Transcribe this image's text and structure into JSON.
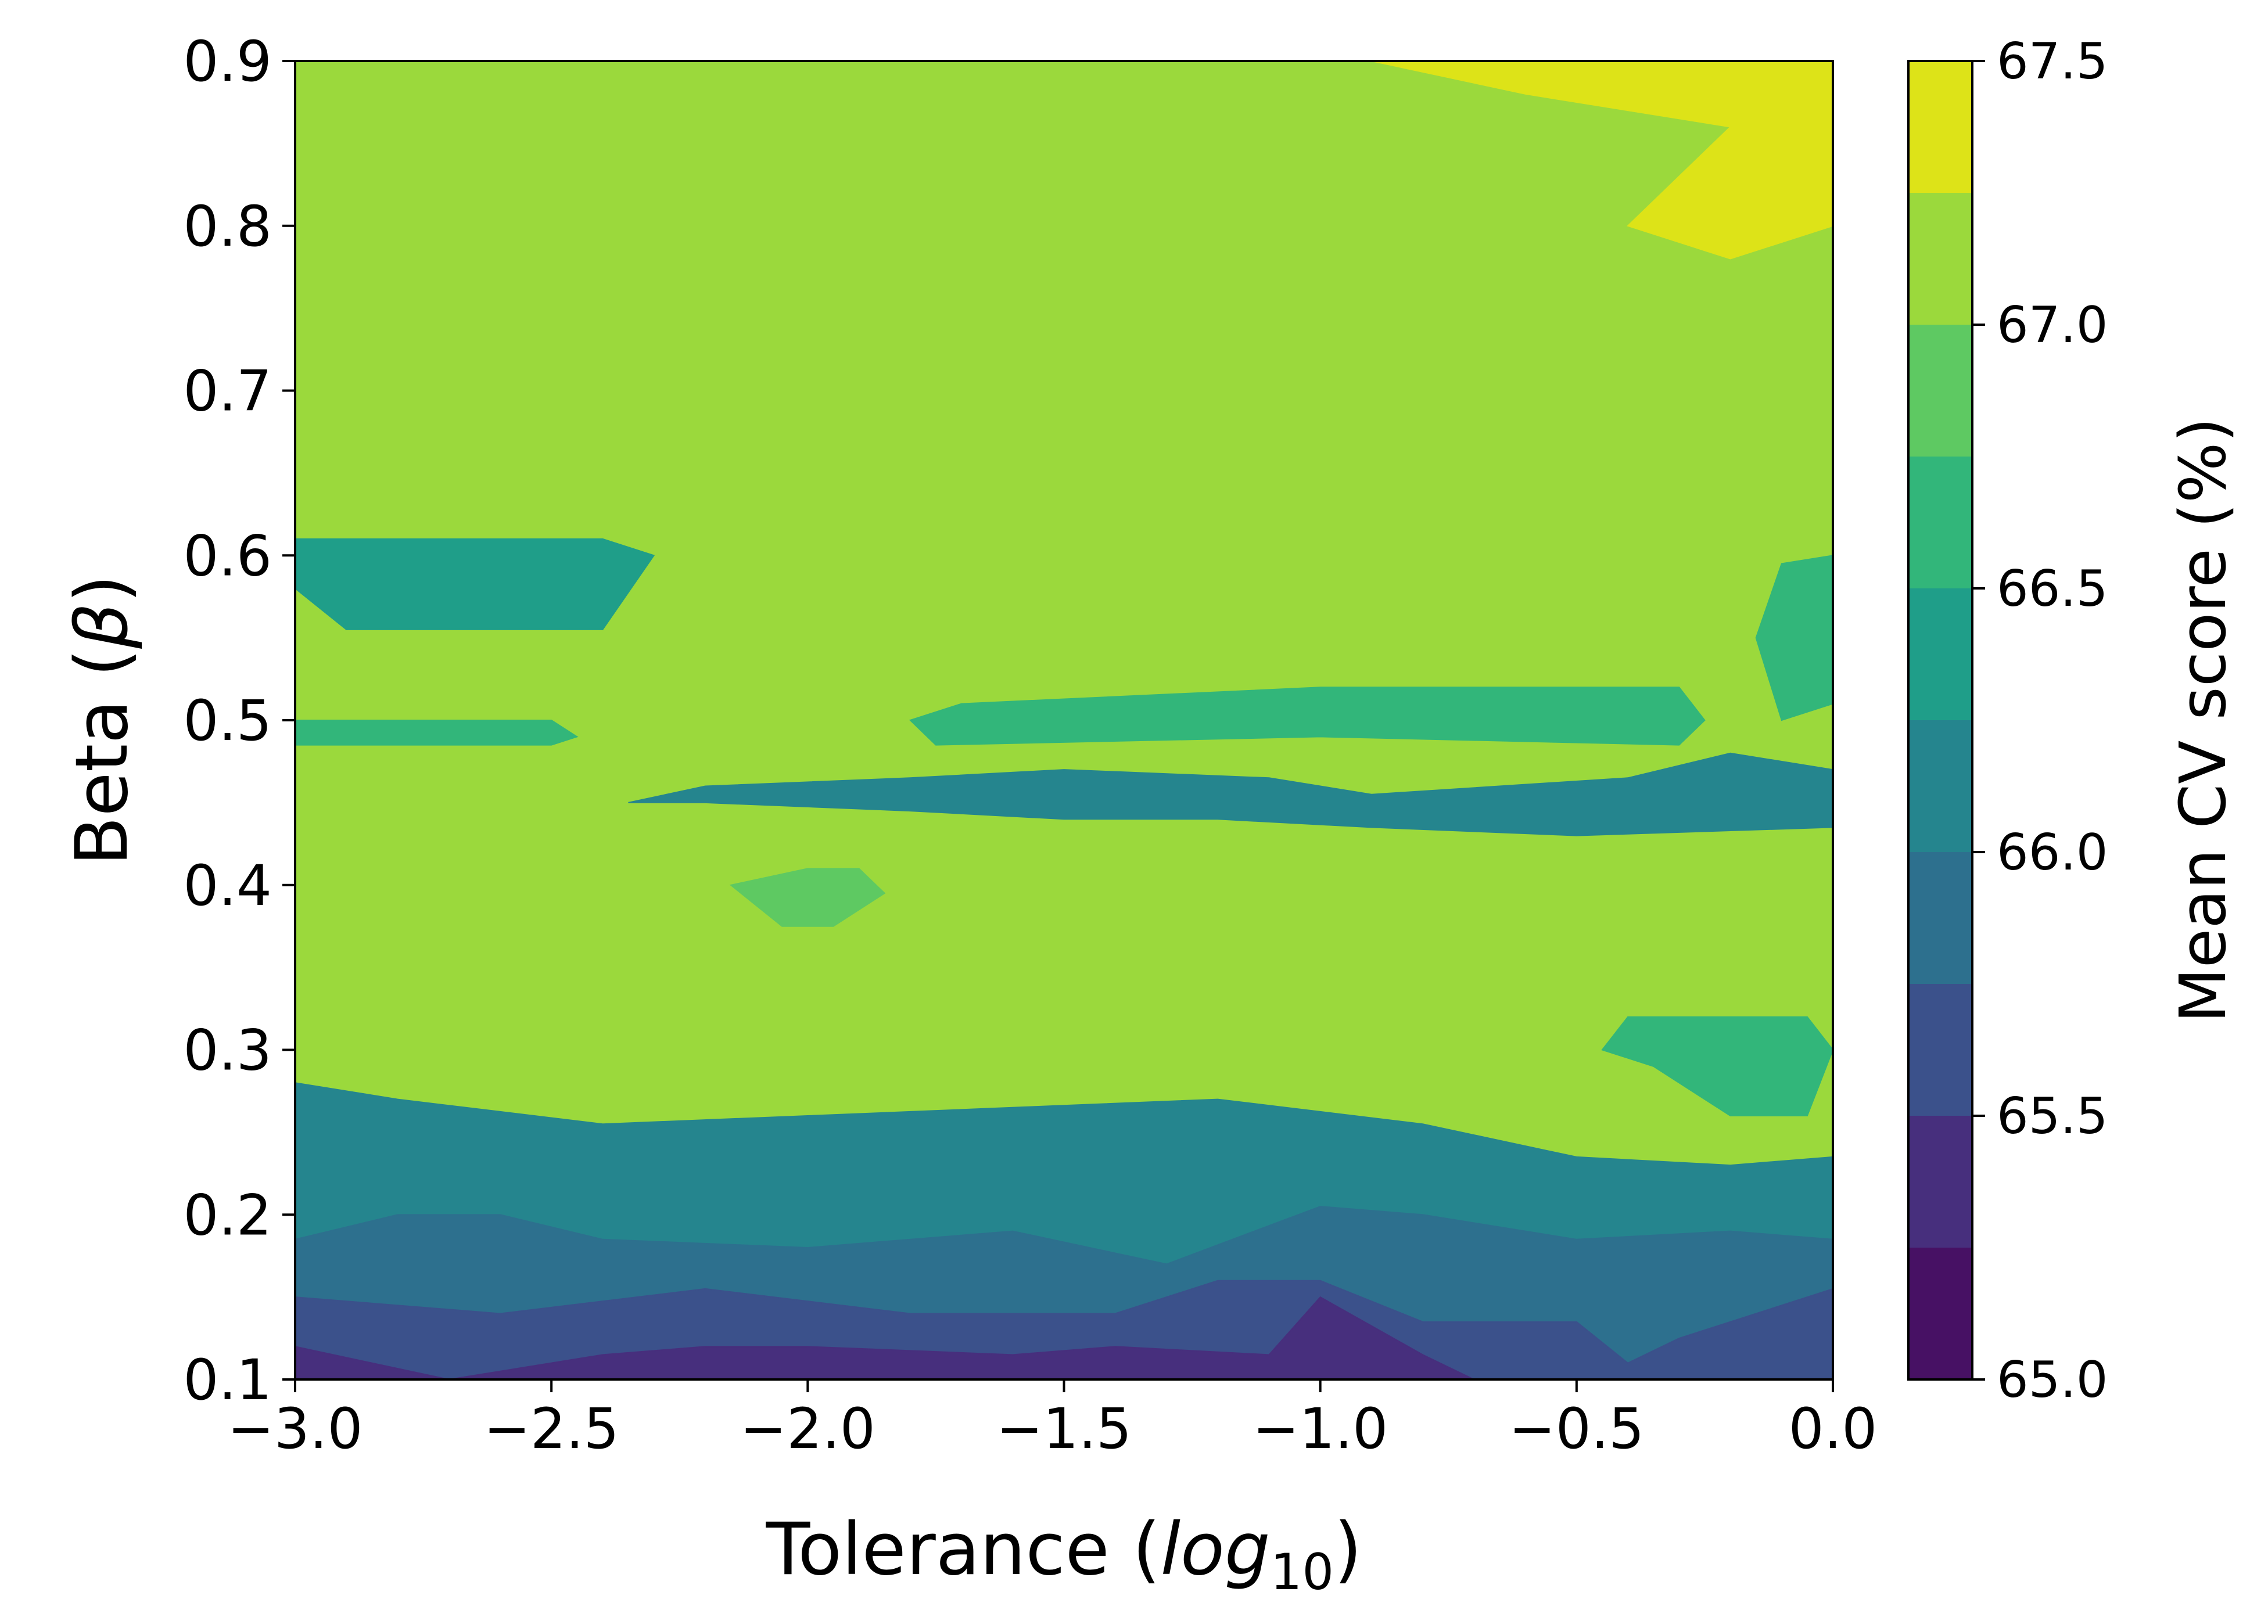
{
  "chart_data": {
    "type": "heatmap",
    "subtype": "filled-contour",
    "xlabel_text": "Tolerance (",
    "xlabel_math_base": "log",
    "xlabel_math_sub": "10",
    "xlabel_close": ")",
    "ylabel_text": "Beta (",
    "ylabel_symbol": "β",
    "ylabel_close": ")",
    "xlim": [
      -3.0,
      0.0
    ],
    "ylim": [
      0.1,
      0.9
    ],
    "x_ticks": [
      -3.0,
      -2.5,
      -2.0,
      -1.5,
      -1.0,
      -0.5,
      0.0
    ],
    "x_tick_labels": [
      "−3.0",
      "−2.5",
      "−2.0",
      "−1.5",
      "−1.0",
      "−0.5",
      "0.0"
    ],
    "y_ticks": [
      0.1,
      0.2,
      0.3,
      0.4,
      0.5,
      0.6,
      0.7,
      0.8,
      0.9
    ],
    "y_tick_labels": [
      "0.1",
      "0.2",
      "0.3",
      "0.4",
      "0.5",
      "0.6",
      "0.7",
      "0.8",
      "0.9"
    ],
    "colorbar": {
      "label": "Mean CV score (%)",
      "range": [
        65.0,
        67.5
      ],
      "ticks": [
        65.0,
        65.5,
        66.0,
        66.5,
        67.0,
        67.5
      ],
      "tick_labels": [
        "65.0",
        "65.5",
        "66.0",
        "66.5",
        "67.0",
        "67.5"
      ],
      "levels": [
        65.0,
        65.25,
        65.5,
        65.75,
        66.0,
        66.25,
        66.5,
        66.75,
        67.0,
        67.25,
        67.5
      ],
      "colormap": "viridis",
      "colors": [
        "#471164",
        "#472f7d",
        "#3b518b",
        "#2d708e",
        "#25858e",
        "#1f9e89",
        "#32b67a",
        "#5ec962",
        "#9bd93c",
        "#dde318"
      ]
    },
    "grid": false,
    "legend": "none",
    "bands": [
      {
        "level": 1,
        "polygons": [
          [
            [
              -3.0,
              0.1
            ],
            [
              0.0,
              0.1
            ],
            [
              0.0,
              0.135
            ],
            [
              -3.0,
              0.135
            ]
          ]
        ]
      },
      {
        "level": 2,
        "polygons": [
          [
            [
              -3.0,
              0.1
            ],
            [
              0.0,
              0.1
            ],
            [
              0.0,
              0.205
            ],
            [
              -3.0,
              0.205
            ]
          ]
        ]
      },
      {
        "level": 3,
        "polygons": [
          [
            [
              -3.0,
              0.1
            ],
            [
              0.0,
              0.1
            ],
            [
              0.0,
              0.28
            ],
            [
              -3.0,
              0.28
            ]
          ]
        ]
      },
      {
        "level": 4,
        "polygons": [
          [
            [
              -3.0,
              0.1
            ],
            [
              0.0,
              0.1
            ],
            [
              0.0,
              0.335
            ],
            [
              -3.0,
              0.335
            ]
          ]
        ]
      },
      {
        "level": 5,
        "polygons": [
          [
            [
              -3.0,
              0.1
            ],
            [
              0.0,
              0.1
            ],
            [
              0.0,
              0.425
            ],
            [
              -3.0,
              0.425
            ]
          ],
          [
            [
              -3.0,
              0.48
            ],
            [
              0.0,
              0.48
            ],
            [
              0.0,
              0.665
            ],
            [
              -3.0,
              0.665
            ]
          ]
        ]
      },
      {
        "level": 6,
        "polygons": [
          [
            [
              -3.0,
              0.1
            ],
            [
              0.0,
              0.1
            ],
            [
              0.0,
              0.72
            ],
            [
              -3.0,
              0.72
            ]
          ]
        ]
      },
      {
        "level": 7,
        "polygons": [
          [
            [
              -3.0,
              0.1
            ],
            [
              0.0,
              0.1
            ],
            [
              0.0,
              0.86
            ],
            [
              -3.0,
              0.86
            ]
          ]
        ]
      },
      {
        "level": 8,
        "polygons": [
          [
            [
              -3.0,
              0.1
            ],
            [
              0.0,
              0.1
            ],
            [
              0.0,
              0.9
            ],
            [
              -3.0,
              0.9
            ]
          ]
        ]
      },
      {
        "level": 9,
        "polygons": [
          [
            [
              -1.1,
              0.9
            ],
            [
              0.0,
              0.9
            ],
            [
              0.0,
              0.8
            ],
            [
              -0.2,
              0.78
            ],
            [
              -0.4,
              0.8
            ],
            [
              -0.2,
              0.86
            ],
            [
              -0.6,
              0.88
            ],
            [
              -0.9,
              0.9
            ]
          ]
        ]
      },
      {
        "level": 4,
        "polygons": [
          [
            [
              -3.0,
              0.1
            ],
            [
              0.0,
              0.1
            ],
            [
              0.0,
              0.235
            ],
            [
              -0.2,
              0.23
            ],
            [
              -0.5,
              0.235
            ],
            [
              -0.8,
              0.255
            ],
            [
              -1.2,
              0.27
            ],
            [
              -1.6,
              0.265
            ],
            [
              -2.0,
              0.26
            ],
            [
              -2.4,
              0.255
            ],
            [
              -2.8,
              0.27
            ],
            [
              -3.0,
              0.28
            ]
          ]
        ]
      },
      {
        "level": 3,
        "polygons": [
          [
            [
              -3.0,
              0.1
            ],
            [
              0.0,
              0.1
            ],
            [
              0.0,
              0.185
            ],
            [
              -0.2,
              0.19
            ],
            [
              -0.5,
              0.185
            ],
            [
              -0.8,
              0.2
            ],
            [
              -1.0,
              0.205
            ],
            [
              -1.3,
              0.17
            ],
            [
              -1.6,
              0.19
            ],
            [
              -2.0,
              0.18
            ],
            [
              -2.4,
              0.185
            ],
            [
              -2.6,
              0.2
            ],
            [
              -2.8,
              0.2
            ],
            [
              -3.0,
              0.185
            ]
          ]
        ]
      },
      {
        "level": 2,
        "polygons": [
          [
            [
              -3.0,
              0.1
            ],
            [
              0.0,
              0.1
            ],
            [
              0.0,
              0.155
            ],
            [
              -0.3,
              0.125
            ],
            [
              -0.4,
              0.11
            ],
            [
              -0.5,
              0.135
            ],
            [
              -0.8,
              0.135
            ],
            [
              -1.0,
              0.16
            ],
            [
              -1.2,
              0.16
            ],
            [
              -1.4,
              0.14
            ],
            [
              -1.8,
              0.14
            ],
            [
              -2.2,
              0.155
            ],
            [
              -2.6,
              0.14
            ],
            [
              -3.0,
              0.15
            ]
          ]
        ]
      },
      {
        "level": 1,
        "polygons": [
          [
            [
              -3.0,
              0.1
            ],
            [
              0.0,
              0.1
            ],
            [
              -0.7,
              0.1
            ],
            [
              -0.8,
              0.115
            ],
            [
              -1.0,
              0.15
            ],
            [
              -1.1,
              0.115
            ],
            [
              -1.4,
              0.12
            ],
            [
              -1.6,
              0.115
            ],
            [
              -2.0,
              0.12
            ],
            [
              -2.2,
              0.12
            ],
            [
              -2.4,
              0.115
            ],
            [
              -2.7,
              0.1
            ],
            [
              -3.0,
              0.12
            ]
          ]
        ]
      },
      {
        "level": 5,
        "polygons": [
          [
            [
              -3.0,
              0.61
            ],
            [
              -2.4,
              0.61
            ],
            [
              -2.3,
              0.6
            ],
            [
              -2.4,
              0.555
            ],
            [
              -2.9,
              0.555
            ],
            [
              -3.0,
              0.58
            ]
          ]
        ]
      },
      {
        "level": 4,
        "polygons": [
          [
            [
              -2.35,
              0.45
            ],
            [
              -2.2,
              0.46
            ],
            [
              -1.8,
              0.465
            ],
            [
              -1.5,
              0.47
            ],
            [
              -1.1,
              0.465
            ],
            [
              -0.9,
              0.455
            ],
            [
              -0.4,
              0.465
            ],
            [
              -0.2,
              0.48
            ],
            [
              0.0,
              0.47
            ],
            [
              0.0,
              0.435
            ],
            [
              -0.5,
              0.43
            ],
            [
              -0.9,
              0.435
            ],
            [
              -1.2,
              0.44
            ],
            [
              -1.5,
              0.44
            ],
            [
              -1.8,
              0.445
            ],
            [
              -2.2,
              0.45
            ]
          ]
        ]
      },
      {
        "level": 6,
        "polygons": [
          [
            [
              -1.8,
              0.5
            ],
            [
              -1.7,
              0.51
            ],
            [
              -1.0,
              0.52
            ],
            [
              -0.3,
              0.52
            ],
            [
              -0.25,
              0.5
            ],
            [
              -0.3,
              0.485
            ],
            [
              -1.0,
              0.49
            ],
            [
              -1.75,
              0.485
            ]
          ]
        ]
      },
      {
        "level": 6,
        "polygons": [
          [
            [
              -3.0,
              0.5
            ],
            [
              -2.5,
              0.5
            ],
            [
              -2.45,
              0.49
            ],
            [
              -2.5,
              0.485
            ],
            [
              -3.0,
              0.485
            ]
          ]
        ]
      },
      {
        "level": 7,
        "polygons": [
          [
            [
              -2.15,
              0.4
            ],
            [
              -2.0,
              0.41
            ],
            [
              -1.9,
              0.41
            ],
            [
              -1.85,
              0.395
            ],
            [
              -1.95,
              0.375
            ],
            [
              -2.05,
              0.375
            ]
          ]
        ]
      },
      {
        "level": 6,
        "polygons": [
          [
            [
              -0.4,
              0.32
            ],
            [
              -0.3,
              0.32
            ],
            [
              -0.05,
              0.32
            ],
            [
              0.0,
              0.3
            ],
            [
              -0.05,
              0.26
            ],
            [
              -0.2,
              0.26
            ],
            [
              -0.35,
              0.29
            ],
            [
              -0.45,
              0.3
            ]
          ]
        ]
      },
      {
        "level": 6,
        "polygons": [
          [
            [
              0.0,
              0.6
            ],
            [
              -0.1,
              0.595
            ],
            [
              -0.15,
              0.55
            ],
            [
              -0.1,
              0.5
            ],
            [
              0.0,
              0.51
            ]
          ]
        ]
      }
    ]
  }
}
